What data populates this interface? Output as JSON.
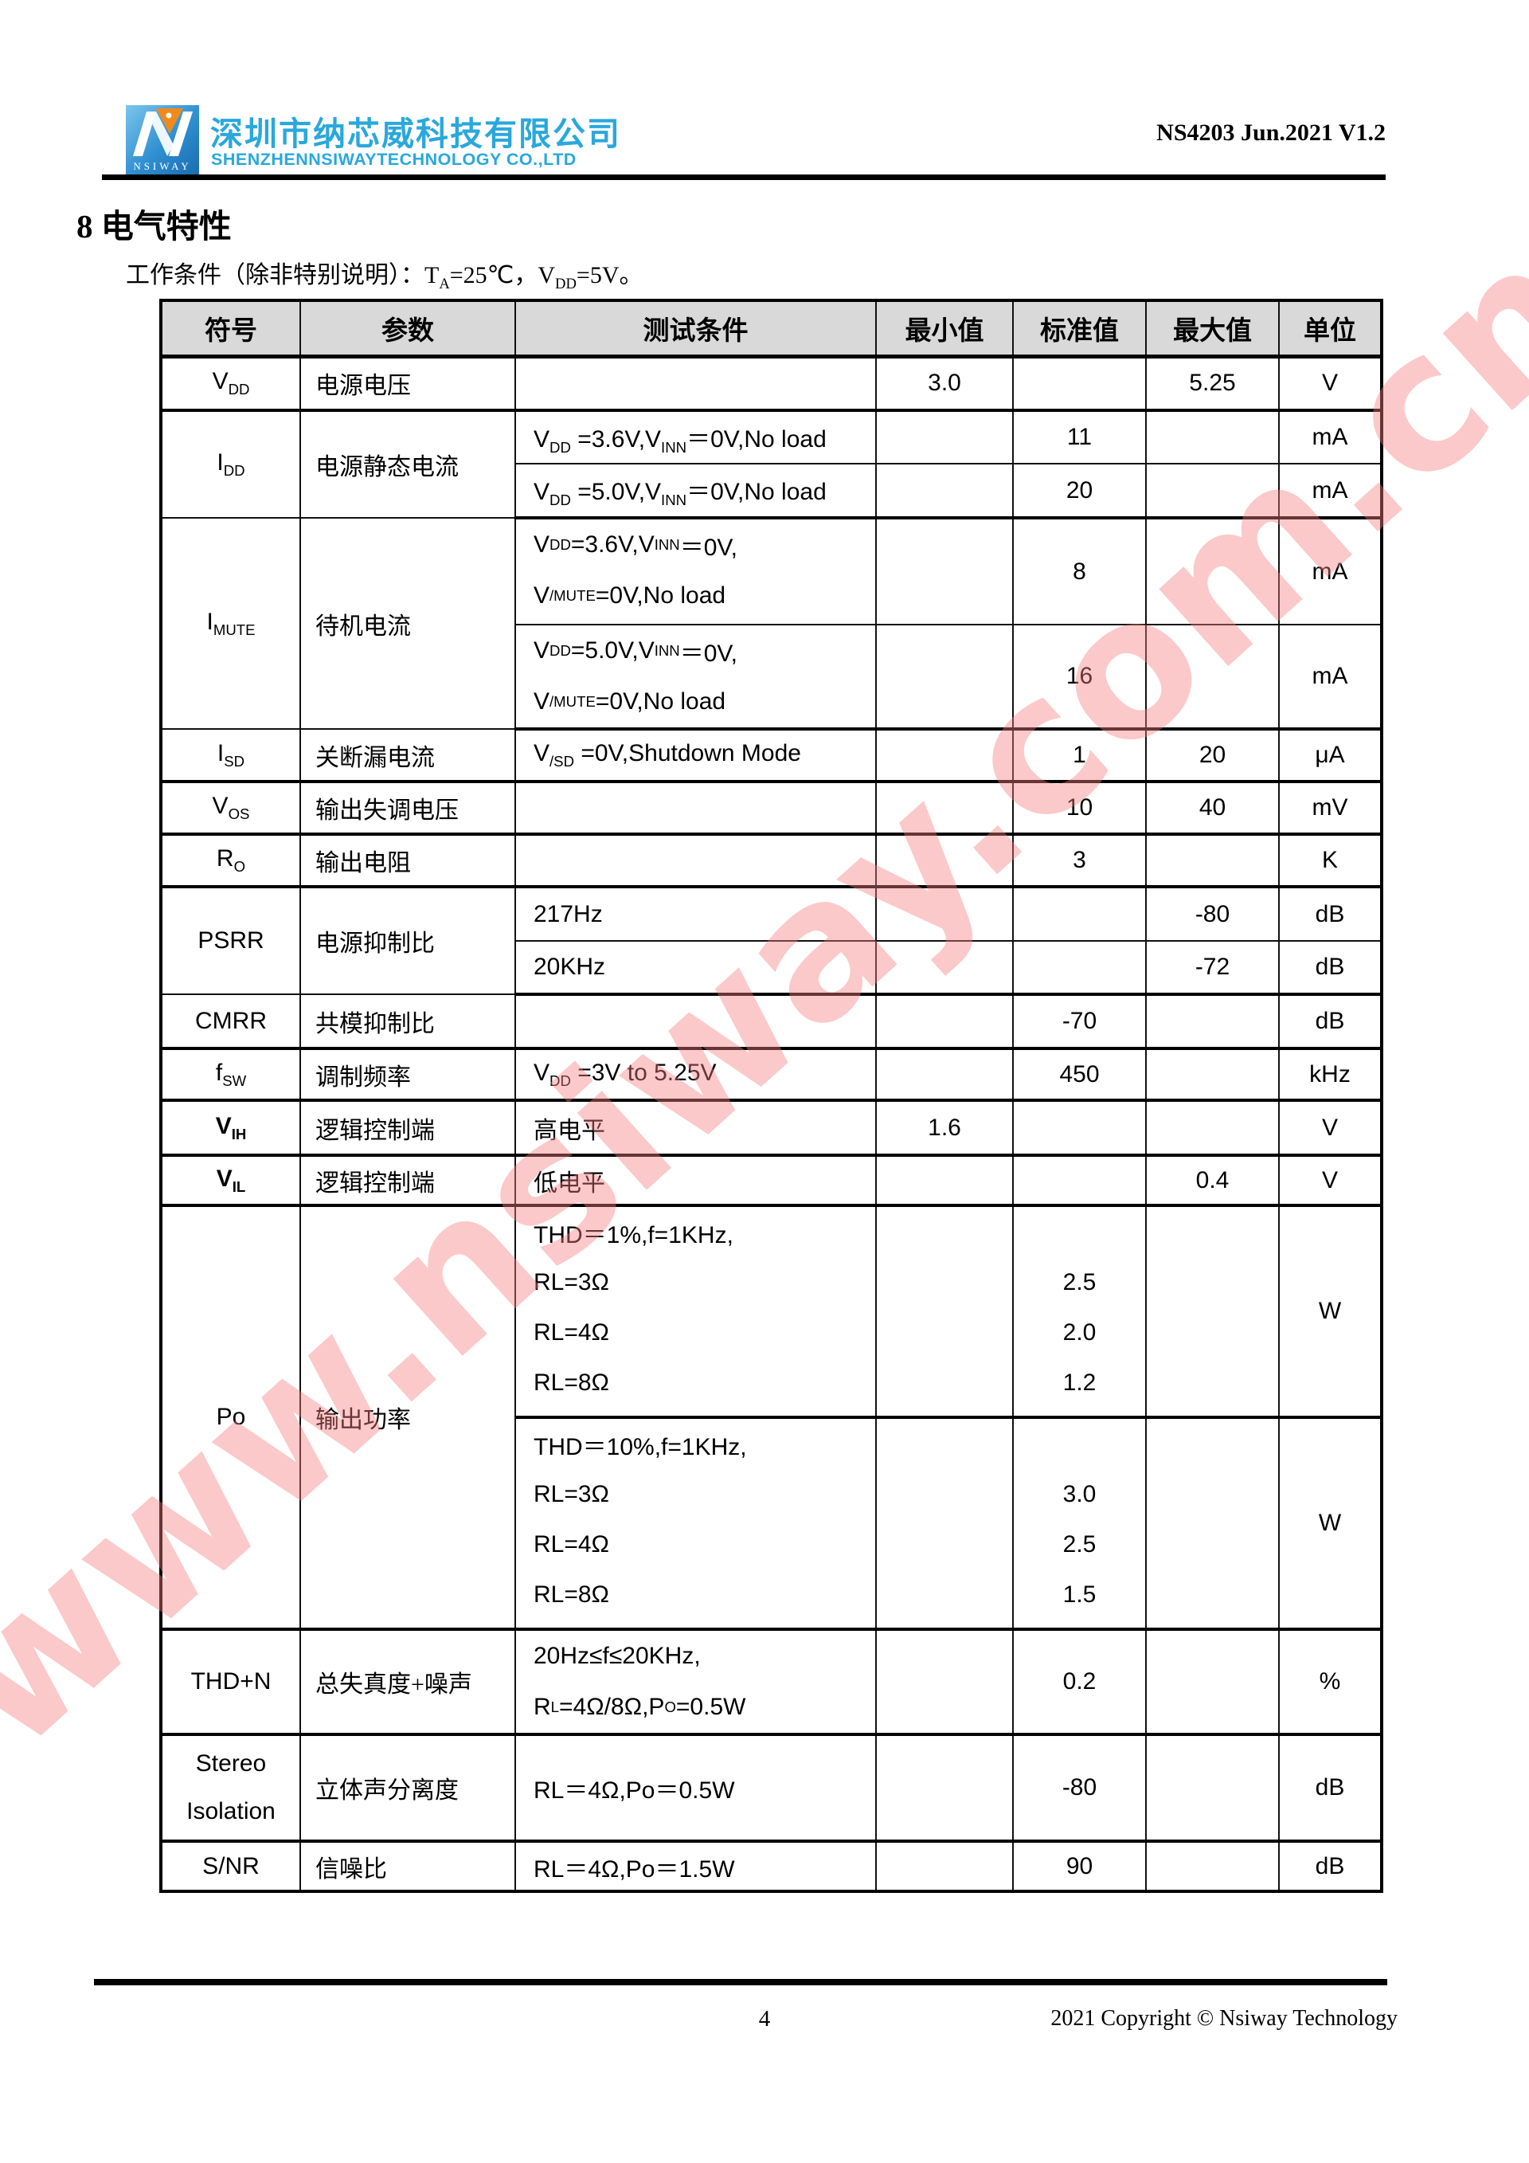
{
  "header": {
    "company_cn": "深圳市纳芯威科技有限公司",
    "company_en": "SHENZHENNSIWAYTECHNOLOGY CO.,LTD",
    "logo_text": "NSIWAY",
    "doc_ref": "NS4203 Jun.2021 V1.2"
  },
  "colors": {
    "brand_cyan": "#29a8dc",
    "logo_blue": "#2f8fd0",
    "logo_orange": "#f18a1d",
    "table_header_bg": "#d9d9d9",
    "watermark_pink": "#f67e7e"
  },
  "section": {
    "title": "8 电气特性",
    "condition_html": "工作条件（除非特别说明）：T<sub>A</sub>=25℃，V<sub>DD</sub>=5V。"
  },
  "watermark": "www.nsiway.com.cn",
  "table": {
    "headers": {
      "symbol": "符号",
      "param": "参数",
      "condition": "测试条件",
      "min": "最小值",
      "typ": "标准值",
      "max": "最大值",
      "unit": "单位"
    },
    "rows": {
      "vdd": {
        "symbol": "V<sub>DD</sub>",
        "param": "电源电压",
        "condition": "",
        "min": "3.0",
        "typ": "",
        "max": "5.25",
        "unit": "V"
      },
      "idd": {
        "symbol": "I<sub>DD</sub>",
        "param": "电源静态电流"
      },
      "idd_a": {
        "condition": "V<sub>DD</sub> =3.6V,V<sub>INN</sub>＝0V,No load",
        "min": "",
        "typ": "11",
        "max": "",
        "unit": "mA"
      },
      "idd_b": {
        "condition": "V<sub>DD</sub> =5.0V,V<sub>INN</sub>＝0V,No load",
        "min": "",
        "typ": "20",
        "max": "",
        "unit": "mA"
      },
      "imute": {
        "symbol": "I<sub>MUTE</sub>",
        "param": "待机电流"
      },
      "imute_a": {
        "cond1": "V<sub>DD</sub> =3.6V,V<sub>INN</sub>＝0V,",
        "cond2": "V<sub>/MUTE</sub> =0V,No load",
        "min": "",
        "typ": "8",
        "max": "",
        "unit": "mA"
      },
      "imute_b": {
        "cond1": "V<sub>DD</sub> =5.0V,V<sub>INN</sub>＝0V,",
        "cond2": "V<sub>/MUTE</sub> =0V,No load",
        "min": "",
        "typ": "16",
        "max": "",
        "unit": "mA"
      },
      "isd": {
        "symbol": "I<sub>SD</sub>",
        "param": "关断漏电流",
        "condition": "V<sub>/SD</sub> =0V,Shutdown Mode",
        "min": "",
        "typ": "1",
        "max": "20",
        "unit": "μA"
      },
      "vos": {
        "symbol": "V<sub>OS</sub>",
        "param": "输出失调电压",
        "condition": "",
        "min": "",
        "typ": "10",
        "max": "40",
        "unit": "mV"
      },
      "ro": {
        "symbol": "R<sub>O</sub>",
        "param": "输出电阻",
        "condition": "",
        "min": "",
        "typ": "3",
        "max": "",
        "unit": "K"
      },
      "psrr": {
        "symbol": "PSRR",
        "param": "电源抑制比"
      },
      "psrr_a": {
        "condition": "217Hz",
        "min": "",
        "typ": "",
        "max": "-80",
        "unit": "dB"
      },
      "psrr_b": {
        "condition": "20KHz",
        "min": "",
        "typ": "",
        "max": "-72",
        "unit": "dB"
      },
      "cmrr": {
        "symbol": "CMRR",
        "param": "共模抑制比",
        "condition": "",
        "min": "",
        "typ": "-70",
        "max": "",
        "unit": "dB"
      },
      "fsw": {
        "symbol": "f<sub>SW</sub>",
        "param": "调制频率",
        "condition": "V<sub>DD</sub> =3V to 5.25V",
        "min": "",
        "typ": "450",
        "max": "",
        "unit": "kHz"
      },
      "vih": {
        "symbol": "V<sub>IH</sub>",
        "param": "逻辑控制端",
        "condition": "高电平",
        "min": "1.6",
        "typ": "",
        "max": "",
        "unit": "V"
      },
      "vil": {
        "symbol": "V<sub>IL</sub>",
        "param": "逻辑控制端",
        "condition": "低电平",
        "min": "",
        "typ": "",
        "max": "0.4",
        "unit": "V"
      },
      "po": {
        "symbol": "Po",
        "param": "输出功率"
      },
      "po_a": {
        "cond1": "THD＝1%,f=1KHz,",
        "cond2": "RL=3Ω",
        "cond3": "RL=4Ω",
        "cond4": "RL=8Ω",
        "typ1": "",
        "typ2": "2.5",
        "typ3": "2.0",
        "typ4": "1.2",
        "unit": "W"
      },
      "po_b": {
        "cond1": "THD＝10%,f=1KHz,",
        "cond2": "RL=3Ω",
        "cond3": "RL=4Ω",
        "cond4": "RL=8Ω",
        "typ1": "",
        "typ2": "3.0",
        "typ3": "2.5",
        "typ4": "1.5",
        "unit": "W"
      },
      "thdn": {
        "symbol": "THD+N",
        "param": "总失真度+噪声",
        "cond1": "20Hz≤f≤20KHz,",
        "cond2": "R<sub>L</sub>=4Ω/8Ω,P<sub>O</sub>=0.5W",
        "min": "",
        "typ": "0.2",
        "max": "",
        "unit": "%"
      },
      "stereo": {
        "sym1": "Stereo",
        "sym2": "Isolation",
        "param": "立体声分离度",
        "condition": "RL＝4Ω,Po＝0.5W",
        "min": "",
        "typ": "-80",
        "max": "",
        "unit": "dB"
      },
      "snr": {
        "symbol": "S/NR",
        "param": "信噪比",
        "condition": "RL＝4Ω,Po＝1.5W",
        "min": "",
        "typ": "90",
        "max": "",
        "unit": "dB"
      }
    }
  },
  "footer": {
    "page_number": "4",
    "copyright": "2021 Copyright © Nsiway Technology"
  }
}
